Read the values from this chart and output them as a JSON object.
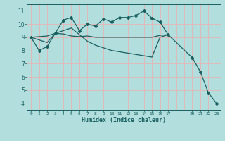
{
  "xlabel": "Humidex (Indice chaleur)",
  "bg_color": "#b2dede",
  "grid_color": "#e8b4b4",
  "line_color": "#1a6060",
  "xlim": [
    -0.5,
    23.5
  ],
  "ylim": [
    3.5,
    11.5
  ],
  "yticks": [
    4,
    5,
    6,
    7,
    8,
    9,
    10,
    11
  ],
  "xtick_positions": [
    0,
    1,
    2,
    3,
    4,
    5,
    6,
    7,
    8,
    9,
    10,
    11,
    12,
    13,
    14,
    15,
    16,
    17,
    20,
    21,
    22,
    23
  ],
  "xtick_labels": [
    "0",
    "1",
    "2",
    "3",
    "4",
    "5",
    "6",
    "7",
    "8",
    "9",
    "10",
    "11",
    "12",
    "13",
    "14",
    "15",
    "16",
    "17",
    "20",
    "21",
    "22",
    "23"
  ],
  "line1_x": [
    0,
    1,
    2,
    3,
    4,
    5,
    6,
    7,
    8,
    9,
    10,
    11,
    12,
    13,
    14,
    15,
    16,
    17,
    20,
    21,
    22,
    23
  ],
  "line1_y": [
    9.0,
    8.0,
    8.3,
    9.3,
    10.3,
    10.5,
    9.5,
    10.0,
    9.85,
    10.4,
    10.15,
    10.5,
    10.5,
    10.65,
    11.0,
    10.45,
    10.15,
    9.2,
    7.45,
    6.4,
    4.8,
    4.0
  ],
  "line2_x": [
    0,
    1,
    2,
    3,
    4,
    5,
    6,
    7,
    8,
    9,
    10,
    11,
    12,
    13,
    14,
    15,
    16,
    17
  ],
  "line2_y": [
    9.0,
    9.05,
    9.1,
    9.3,
    9.25,
    9.1,
    9.05,
    9.1,
    9.0,
    9.0,
    9.0,
    9.0,
    9.0,
    9.0,
    9.0,
    9.0,
    9.15,
    9.2
  ],
  "line3_x": [
    0,
    1,
    2,
    3,
    4,
    5,
    6,
    7,
    8,
    9,
    10,
    11,
    12,
    13,
    14,
    15,
    16,
    17
  ],
  "line3_y": [
    9.0,
    8.8,
    8.6,
    9.3,
    9.5,
    9.7,
    9.2,
    8.7,
    8.4,
    8.2,
    8.0,
    7.9,
    7.8,
    7.7,
    7.6,
    7.5,
    9.0,
    9.2
  ]
}
